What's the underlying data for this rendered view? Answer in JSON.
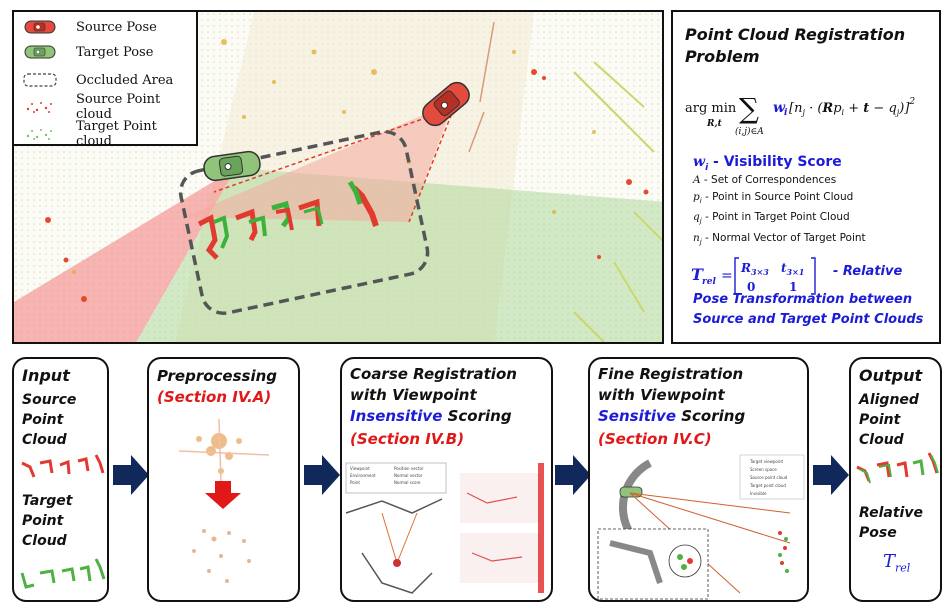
{
  "legend": {
    "items": [
      {
        "label": "Source Pose",
        "icon": "red-car-icon"
      },
      {
        "label": "Target Pose",
        "icon": "green-car-icon"
      },
      {
        "label": "Occluded Area",
        "icon": "dashed-box-icon"
      },
      {
        "label": "Source Point cloud",
        "icon": "red-dots-icon"
      },
      {
        "label": "Target Point cloud",
        "icon": "green-dots-icon"
      }
    ]
  },
  "problem": {
    "title_line1": "Point Cloud Registration",
    "title_line2": "Problem",
    "weight_symbol": "w",
    "weight_sub": "i",
    "weight_label": " - Visibility Score",
    "definitions": [
      {
        "sym": "A",
        "sub": "",
        "text": " - Set of Correspondences"
      },
      {
        "sym": "p",
        "sub": "i",
        "text": " - Point in Source Point Cloud"
      },
      {
        "sym": "q",
        "sub": "j",
        "text": " - Point in Target Point Cloud"
      },
      {
        "sym": "n",
        "sub": "j",
        "text": " - Normal Vector of Target Point"
      }
    ],
    "trel_suffix": "- Relative",
    "pose_line1": "Pose Transformation between",
    "pose_line2": "Source and Target Point Clouds"
  },
  "stages": {
    "input": {
      "title": "Input",
      "source_label": [
        "Source",
        "Point",
        "Cloud"
      ],
      "target_label": [
        "Target",
        "Point",
        "Cloud"
      ]
    },
    "preprocessing": {
      "title": "Preprocessing",
      "section": "(Section IV.A)"
    },
    "coarse": {
      "line1": "Coarse Registration",
      "line2": "with Viewpoint",
      "highlight": "Insensitive",
      "rest": " Scoring",
      "section": "(Section IV.B)"
    },
    "fine": {
      "line1": "Fine Registration",
      "line2": "with Viewpoint",
      "highlight": "Sensitive",
      "rest": " Scoring",
      "section": "(Section IV.C)"
    },
    "output": {
      "title": "Output",
      "aligned_label": [
        "Aligned",
        "Point",
        "Cloud"
      ],
      "pose_label": [
        "Relative",
        "Pose"
      ],
      "trel_symbol": "T",
      "trel_sub": "rel"
    }
  },
  "colors": {
    "title_blue": "#1c1cd6",
    "section_red": "#e01818",
    "arrow_navy": "#10285a",
    "source_red": "#e23a2e",
    "target_green": "#4fb142"
  }
}
